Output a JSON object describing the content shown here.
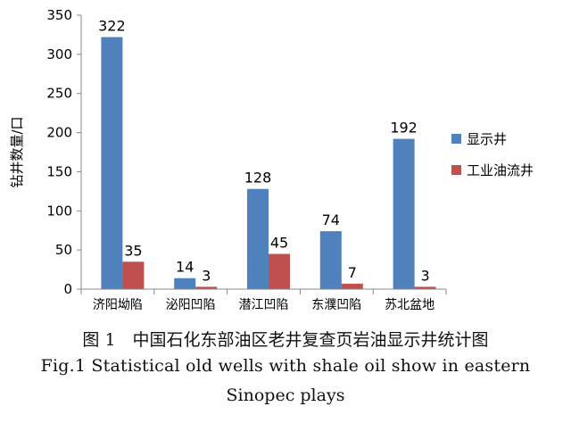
{
  "chart_data": {
    "type": "bar",
    "categories": [
      "济阳坳陷",
      "泌阳凹陷",
      "潜江凹陷",
      "东濮凹陷",
      "苏北盆地"
    ],
    "series": [
      {
        "name": "显示井",
        "color": "#4F81BD",
        "values": [
          322,
          14,
          128,
          74,
          192
        ]
      },
      {
        "name": "工业油流井",
        "color": "#C0504D",
        "values": [
          35,
          3,
          45,
          7,
          3
        ]
      }
    ],
    "ylabel": "钻井数量/口",
    "xlabel": "",
    "ylim": [
      0,
      350
    ],
    "yticks": [
      0,
      50,
      100,
      150,
      200,
      250,
      300,
      350
    ],
    "grid": false,
    "legend_position": "right"
  },
  "caption": {
    "cn": "图 1　中国石化东部油区老井复查页岩油显示井统计图",
    "en_line1": "Fig.1 Statistical old wells with shale oil show in eastern",
    "en_line2": "Sinopec plays"
  }
}
